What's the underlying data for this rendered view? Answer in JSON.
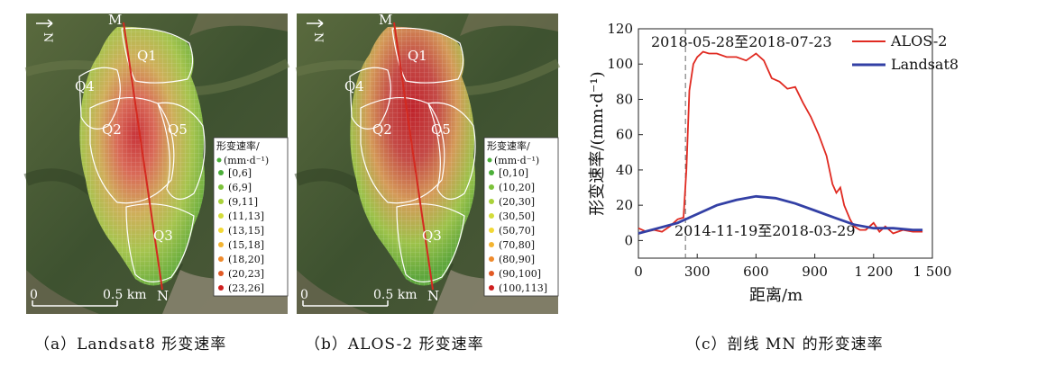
{
  "panels": [
    {
      "id": "a",
      "caption": "（a）Landsat8 形变速率",
      "north_label": "N",
      "line_start": "M",
      "line_end": "N",
      "zones": [
        "Q1",
        "Q2",
        "Q3",
        "Q4",
        "Q5"
      ],
      "scale_zero": "0",
      "scale_max": "0.5 km",
      "legend_title_1": "形变速率/",
      "legend_title_2": "(mm·d⁻¹)",
      "legend_items": [
        {
          "label": "[0,6]",
          "color": "#4caf3a"
        },
        {
          "label": "(6,9]",
          "color": "#7cc23a"
        },
        {
          "label": "(9,11]",
          "color": "#a9d23a"
        },
        {
          "label": "(11,13]",
          "color": "#d3dc3a"
        },
        {
          "label": "(13,15]",
          "color": "#f2d836"
        },
        {
          "label": "(15,18]",
          "color": "#f3b431"
        },
        {
          "label": "(18,20]",
          "color": "#ef8a2c"
        },
        {
          "label": "(20,23]",
          "color": "#e25a25"
        },
        {
          "label": "(23,26]",
          "color": "#cf1f1f"
        }
      ]
    },
    {
      "id": "b",
      "caption": "（b）ALOS-2 形变速率",
      "north_label": "N",
      "line_start": "M",
      "line_end": "N",
      "zones": [
        "Q1",
        "Q2",
        "Q3",
        "Q4",
        "Q5"
      ],
      "scale_zero": "0",
      "scale_max": "0.5 km",
      "legend_title_1": "形变速率/",
      "legend_title_2": "(mm·d⁻¹)",
      "legend_items": [
        {
          "label": "[0,10]",
          "color": "#4caf3a"
        },
        {
          "label": "(10,20]",
          "color": "#7cc23a"
        },
        {
          "label": "(20,30]",
          "color": "#a9d23a"
        },
        {
          "label": "(30,50]",
          "color": "#d3dc3a"
        },
        {
          "label": "(50,70]",
          "color": "#f2d836"
        },
        {
          "label": "(70,80]",
          "color": "#f3b431"
        },
        {
          "label": "(80,90]",
          "color": "#ef8a2c"
        },
        {
          "label": "(90,100]",
          "color": "#e25a25"
        },
        {
          "label": "(100,113]",
          "color": "#cf1f1f"
        }
      ]
    }
  ],
  "chart_caption": "（c）剖线 MN 的形变速率",
  "chart_data": {
    "type": "line",
    "title": "",
    "xlabel": "距离/m",
    "ylabel": "形变速率/(mm·d⁻¹)",
    "xlim": [
      0,
      1500
    ],
    "ylim": [
      -10,
      120
    ],
    "xticks": [
      0,
      300,
      600,
      900,
      1200,
      1500
    ],
    "xtick_labels": [
      "0",
      "300",
      "600",
      "900",
      "1 200",
      "1 500"
    ],
    "yticks": [
      0,
      20,
      40,
      60,
      80,
      100,
      120
    ],
    "ytick_labels": [
      "0",
      "20",
      "40",
      "60",
      "80",
      "100",
      "120"
    ],
    "annotations": [
      {
        "text": "2018-05-28至2018-07-23"
      },
      {
        "text": "2014-11-19至2018-03-29"
      }
    ],
    "vline_x": 240,
    "series": [
      {
        "name": "ALOS-2",
        "color": "#e02a21",
        "x": [
          0,
          40,
          80,
          120,
          160,
          200,
          230,
          245,
          260,
          280,
          300,
          330,
          360,
          400,
          450,
          500,
          550,
          600,
          640,
          680,
          720,
          760,
          800,
          840,
          880,
          920,
          960,
          990,
          1010,
          1030,
          1050,
          1080,
          1100,
          1130,
          1160,
          1200,
          1230,
          1260,
          1300,
          1350,
          1400,
          1450
        ],
        "y": [
          7,
          5,
          6,
          5,
          8,
          12,
          13,
          40,
          85,
          100,
          104,
          107,
          106,
          106,
          104,
          104,
          102,
          106,
          102,
          92,
          90,
          86,
          87,
          78,
          70,
          60,
          48,
          32,
          27,
          30,
          20,
          12,
          8,
          6,
          6,
          10,
          5,
          8,
          4,
          6,
          5,
          5
        ]
      },
      {
        "name": "Landsat8",
        "color": "#3340a5",
        "x": [
          0,
          100,
          200,
          300,
          400,
          500,
          600,
          700,
          800,
          900,
          1000,
          1100,
          1200,
          1300,
          1400,
          1450
        ],
        "y": [
          4,
          7,
          10,
          15,
          20,
          23,
          25,
          24,
          21,
          17,
          13,
          9,
          7,
          7,
          6,
          6
        ]
      }
    ]
  }
}
